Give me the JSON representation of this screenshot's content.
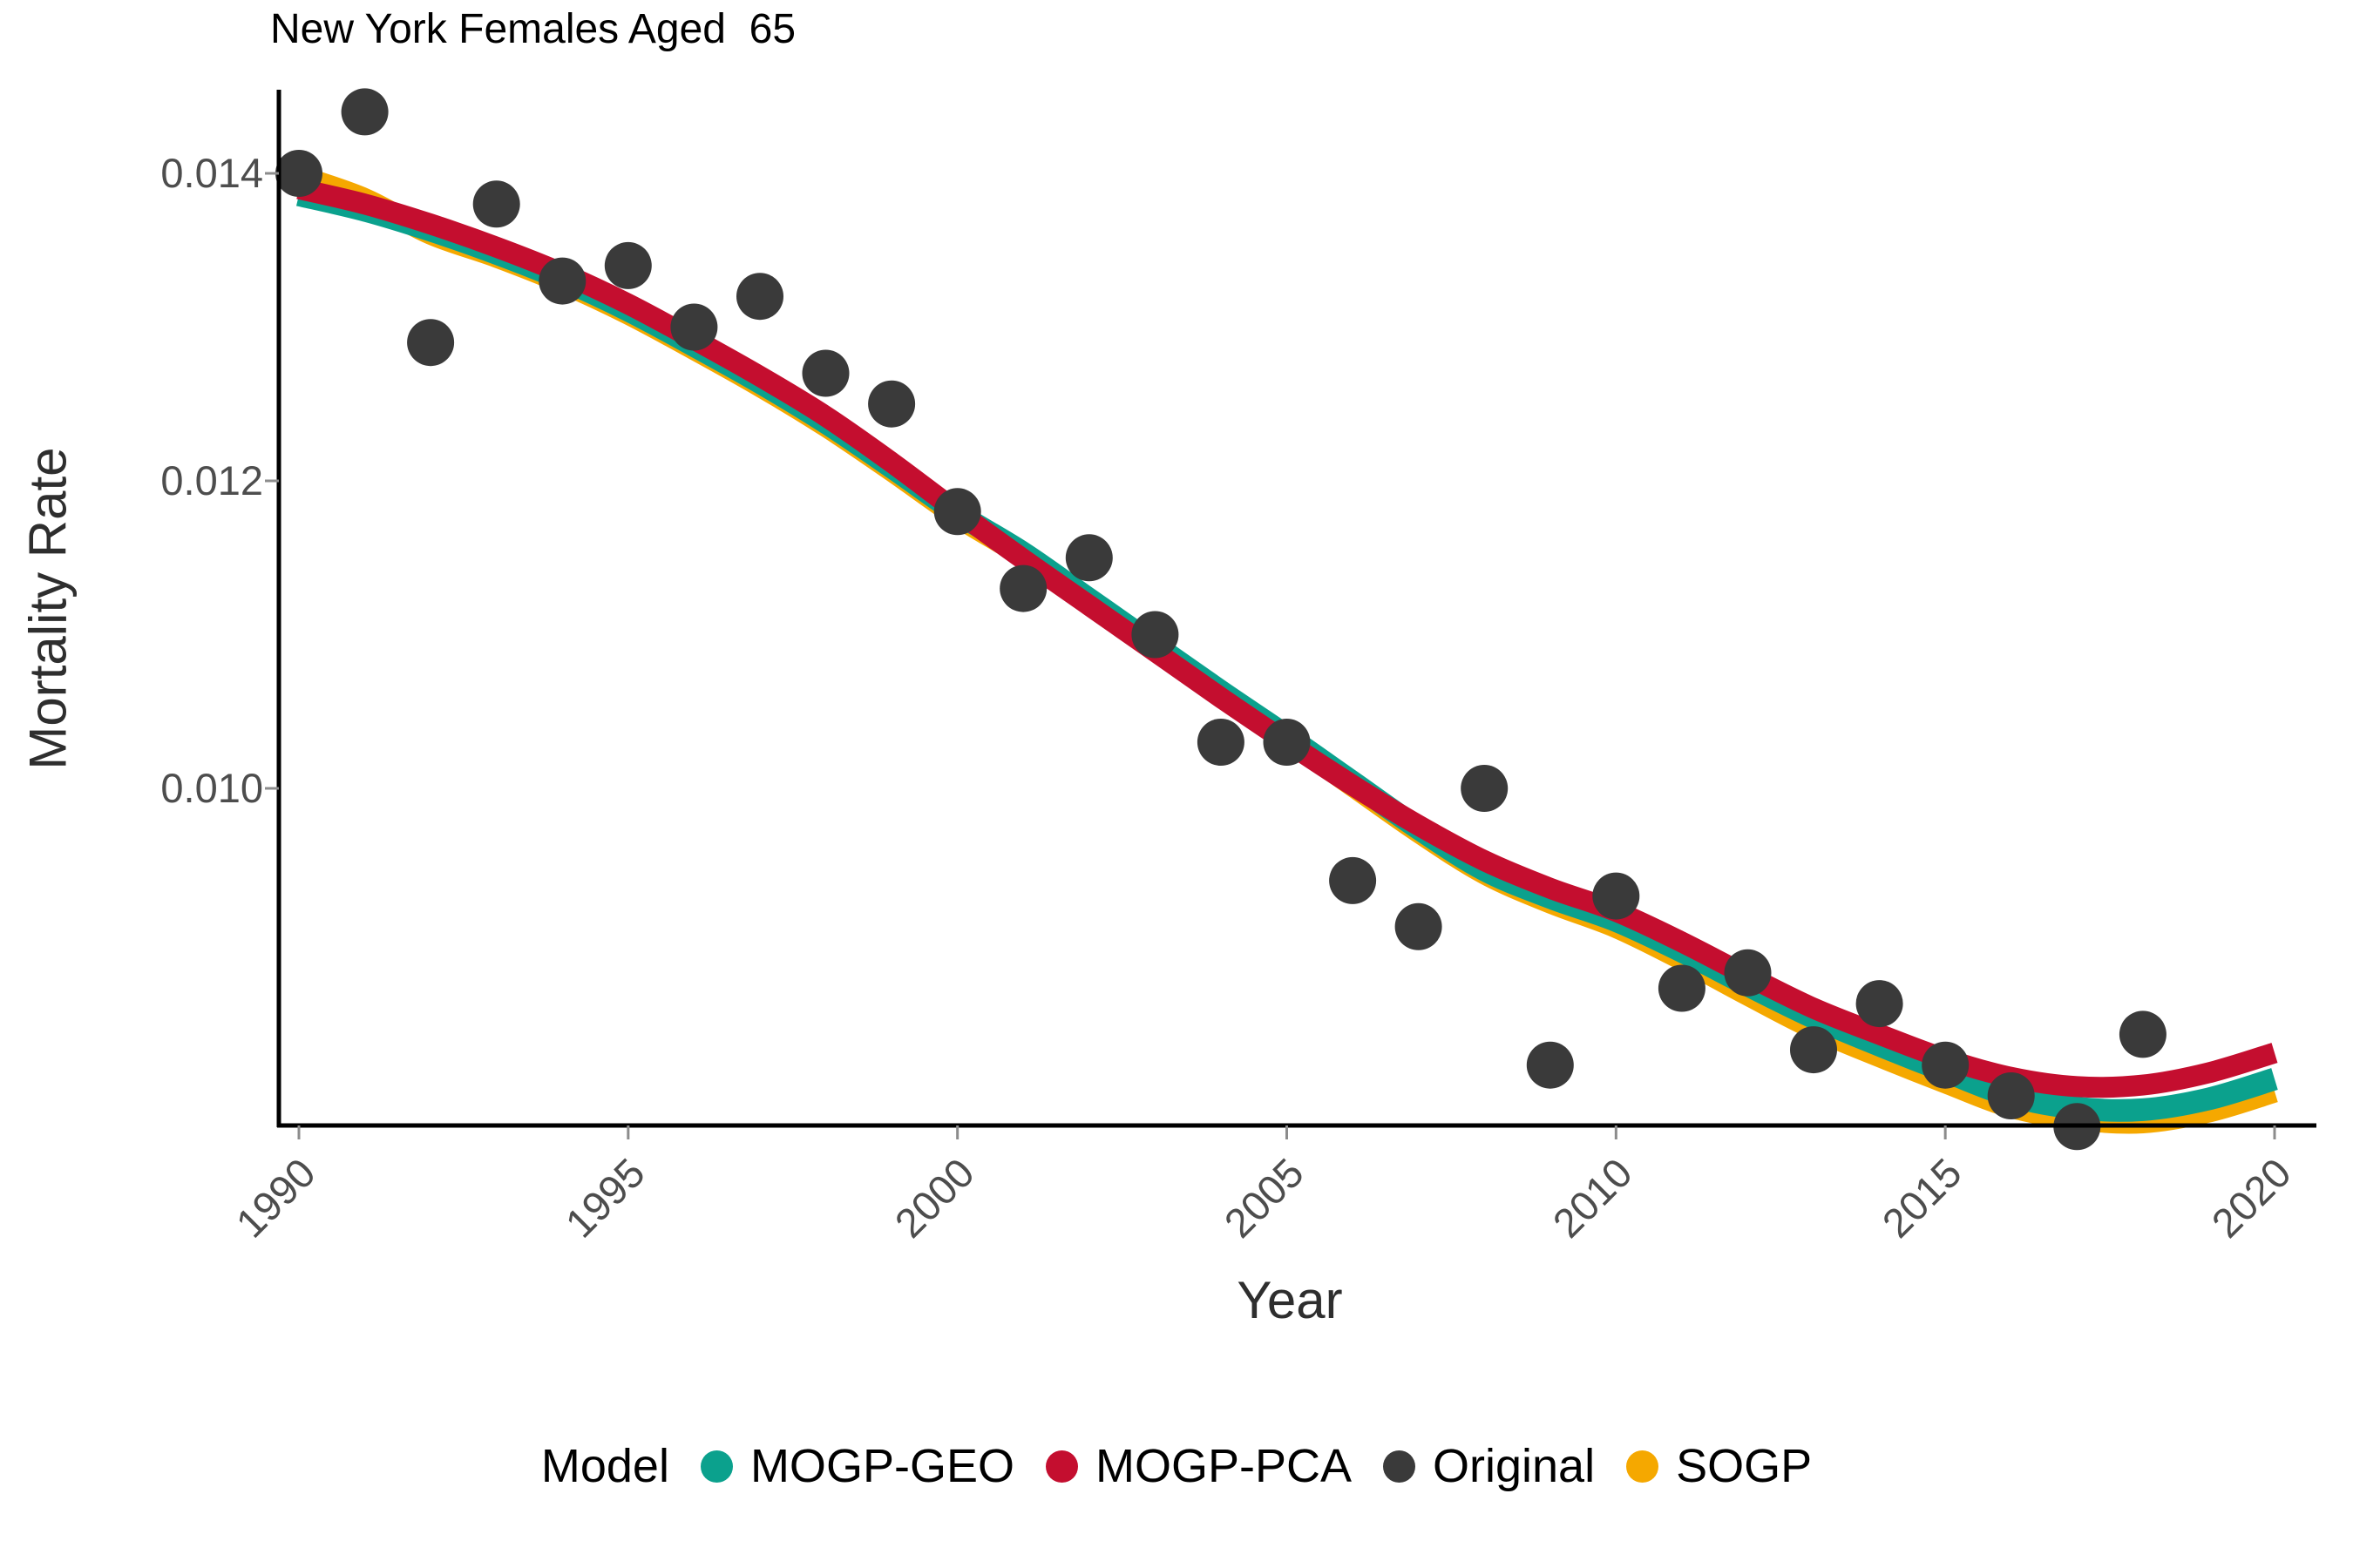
{
  "title": "New York Females Aged  65",
  "y_axis": {
    "label": "Mortality Rate",
    "tick_labels": [
      "0.014",
      "0.012",
      "0.010"
    ],
    "tick_values": [
      0.014,
      0.012,
      0.01
    ]
  },
  "x_axis": {
    "label": "Year",
    "tick_labels": [
      "1990",
      "1995",
      "2000",
      "2005",
      "2010",
      "2015",
      "2020"
    ],
    "tick_values": [
      1990,
      1995,
      2000,
      2005,
      2010,
      2015,
      2020
    ]
  },
  "legend": {
    "title": "Model",
    "items": [
      {
        "label": "MOGP-GEO",
        "color": "#0BA18D"
      },
      {
        "label": "MOGP-PCA",
        "color": "#C40E2F"
      },
      {
        "label": "Original",
        "color": "#3A3A3A"
      },
      {
        "label": "SOGP",
        "color": "#F5A800"
      }
    ]
  },
  "colors": {
    "point": "#3A3A3A",
    "axis": "#000000",
    "tick_mark": "#8c8c8c",
    "tick_text": "#4d4d4d"
  },
  "chart_data": {
    "type": "scatter",
    "title": "New York Females Aged  65",
    "xlabel": "Year",
    "ylabel": "Mortality Rate",
    "x_range": [
      1990,
      2020
    ],
    "y_tick_values": [
      0.01,
      0.012,
      0.014
    ],
    "grid": false,
    "legend_position": "bottom",
    "original_points": {
      "name": "Original",
      "years": [
        1990,
        1991,
        1992,
        1993,
        1994,
        1995,
        1996,
        1997,
        1998,
        1999,
        2000,
        2001,
        2002,
        2003,
        2004,
        2005,
        2006,
        2007,
        2008,
        2009,
        2010,
        2011,
        2012,
        2013,
        2014,
        2015,
        2016,
        2017,
        2018
      ],
      "values": [
        0.014,
        0.0144,
        0.0129,
        0.0138,
        0.0133,
        0.0134,
        0.013,
        0.0132,
        0.0127,
        0.0125,
        0.0118,
        0.0113,
        0.0115,
        0.011,
        0.0103,
        0.0103,
        0.0094,
        0.0091,
        0.01,
        0.0082,
        0.0093,
        0.0087,
        0.0088,
        0.0083,
        0.0086,
        0.0082,
        0.008,
        0.0078,
        0.0084
      ]
    },
    "series": [
      {
        "name": "SOGP",
        "color": "#F5A800",
        "width": 26,
        "x": [
          1990,
          1991,
          1992,
          1993,
          1994,
          1995,
          1996,
          1997,
          1998,
          1999,
          2000,
          2001,
          2002,
          2003,
          2004,
          2005,
          2006,
          2007,
          2008,
          2009,
          2010,
          2011,
          2012,
          2013,
          2014,
          2015,
          2016,
          2017,
          2018,
          2019,
          2020
        ],
        "y": [
          0.01398,
          0.01383,
          0.01361,
          0.01346,
          0.01329,
          0.01309,
          0.01286,
          0.01262,
          0.01236,
          0.01207,
          0.01177,
          0.01151,
          0.01121,
          0.01091,
          0.01061,
          0.01032,
          0.01002,
          0.00972,
          0.00945,
          0.00926,
          0.0091,
          0.00889,
          0.00866,
          0.00844,
          0.00826,
          0.00809,
          0.00793,
          0.00785,
          0.00783,
          0.0079,
          0.00803
        ]
      },
      {
        "name": "MOGP-GEO",
        "color": "#0BA18D",
        "width": 26,
        "x": [
          1990,
          1991,
          1992,
          1993,
          1994,
          1995,
          1996,
          1997,
          1998,
          1999,
          2000,
          2001,
          2002,
          2003,
          2004,
          2005,
          2006,
          2007,
          2008,
          2009,
          2010,
          2011,
          2012,
          2013,
          2014,
          2015,
          2016,
          2017,
          2018,
          2019,
          2020
        ],
        "y": [
          0.01386,
          0.01376,
          0.01363,
          0.01348,
          0.01331,
          0.01311,
          0.01288,
          0.01264,
          0.01238,
          0.01209,
          0.01179,
          0.01153,
          0.01123,
          0.01093,
          0.01063,
          0.01034,
          0.01004,
          0.00974,
          0.00947,
          0.00929,
          0.00914,
          0.00894,
          0.00872,
          0.00851,
          0.00833,
          0.00816,
          0.008,
          0.00792,
          0.00791,
          0.00798,
          0.00811
        ]
      },
      {
        "name": "MOGP-PCA",
        "color": "#C40E2F",
        "width": 24,
        "x": [
          1990,
          1991,
          1992,
          1993,
          1994,
          1995,
          1996,
          1997,
          1998,
          1999,
          2000,
          2001,
          2002,
          2003,
          2004,
          2005,
          2006,
          2007,
          2008,
          2009,
          2010,
          2011,
          2012,
          2013,
          2014,
          2015,
          2016,
          2017,
          2018,
          2019,
          2020
        ],
        "y": [
          0.0139,
          0.0138,
          0.01367,
          0.01352,
          0.01335,
          0.01315,
          0.01292,
          0.01268,
          0.01242,
          0.01212,
          0.0118,
          0.01149,
          0.01119,
          0.01089,
          0.01059,
          0.0103,
          0.01002,
          0.00976,
          0.00953,
          0.00935,
          0.0092,
          0.009,
          0.00878,
          0.00857,
          0.0084,
          0.00824,
          0.00812,
          0.00806,
          0.00807,
          0.00815,
          0.00828
        ]
      }
    ]
  }
}
